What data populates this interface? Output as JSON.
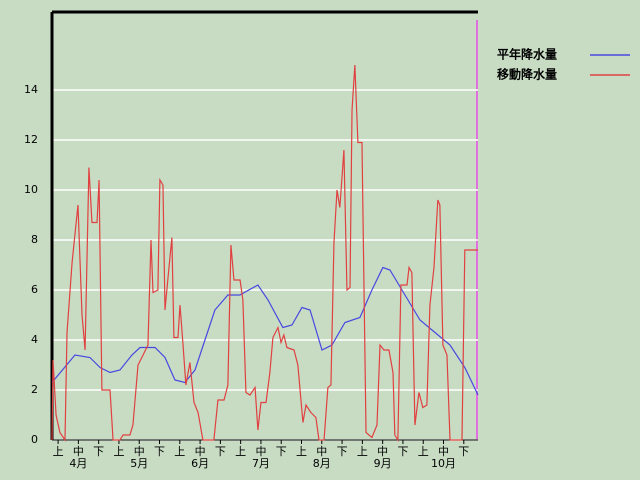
{
  "chart_data": {
    "type": "line",
    "ylim": [
      0,
      17.12
    ],
    "yticks": [
      0,
      2,
      4,
      6,
      8,
      10,
      12,
      14
    ],
    "grid": true,
    "xlim": [
      0,
      21
    ],
    "xticks": [
      {
        "value": 0.3,
        "label": "上"
      },
      {
        "value": 1.3,
        "label": "中"
      },
      {
        "value": 2.3,
        "label": "下"
      },
      {
        "value": 3.3,
        "label": "上"
      },
      {
        "value": 4.3,
        "label": "中"
      },
      {
        "value": 5.3,
        "label": "下"
      },
      {
        "value": 6.3,
        "label": "上"
      },
      {
        "value": 7.3,
        "label": "中"
      },
      {
        "value": 8.3,
        "label": "下"
      },
      {
        "value": 9.3,
        "label": "上"
      },
      {
        "value": 10.3,
        "label": "中"
      },
      {
        "value": 11.3,
        "label": "下"
      },
      {
        "value": 12.3,
        "label": "上"
      },
      {
        "value": 13.3,
        "label": "中"
      },
      {
        "value": 14.3,
        "label": "下"
      },
      {
        "value": 15.3,
        "label": "上"
      },
      {
        "value": 16.3,
        "label": "中"
      },
      {
        "value": 17.3,
        "label": "下"
      },
      {
        "value": 18.3,
        "label": "上"
      },
      {
        "value": 19.3,
        "label": "中"
      },
      {
        "value": 20.3,
        "label": "下"
      }
    ],
    "months": [
      {
        "value": 1.3,
        "label": "4月"
      },
      {
        "value": 4.3,
        "label": "5月"
      },
      {
        "value": 7.3,
        "label": "6月"
      },
      {
        "value": 10.3,
        "label": "7月"
      },
      {
        "value": 13.3,
        "label": "8月"
      },
      {
        "value": 16.3,
        "label": "9月"
      },
      {
        "value": 19.3,
        "label": "10月"
      }
    ],
    "series": [
      {
        "name": "平年降水量",
        "color": "#4848e0",
        "x": [
          0,
          1.13,
          1.87,
          2.37,
          2.86,
          3.35,
          3.94,
          4.34,
          5.08,
          5.57,
          6.06,
          6.55,
          7.05,
          7.54,
          8.03,
          8.67,
          9.26,
          10.15,
          10.65,
          11.38,
          11.83,
          12.32,
          12.72,
          13.31,
          13.8,
          14.44,
          15.18,
          15.77,
          16.31,
          16.66,
          17.4,
          18.14,
          18.88,
          19.62,
          20.35,
          21
        ],
        "values": [
          2.3,
          3.4,
          3.3,
          2.9,
          2.7,
          2.8,
          3.4,
          3.7,
          3.7,
          3.3,
          2.4,
          2.3,
          2.8,
          4.0,
          5.2,
          5.8,
          5.8,
          6.2,
          5.6,
          4.5,
          4.6,
          5.3,
          5.2,
          3.6,
          3.8,
          4.7,
          4.9,
          6.0,
          6.9,
          6.8,
          5.8,
          4.8,
          4.3,
          3.8,
          2.9,
          1.8
        ]
      },
      {
        "name": "移動降水量",
        "color": "#e04040",
        "x": [
          0,
          0.05,
          0.2,
          0.39,
          0.64,
          0.74,
          0.99,
          1.28,
          1.48,
          1.63,
          1.82,
          1.97,
          2.22,
          2.32,
          2.46,
          2.86,
          3.01,
          3.35,
          3.5,
          3.84,
          3.99,
          4.24,
          4.49,
          4.73,
          4.88,
          4.98,
          5.22,
          5.32,
          5.47,
          5.57,
          5.72,
          5.91,
          6.01,
          6.21,
          6.31,
          6.46,
          6.6,
          6.8,
          7,
          7.2,
          7.44,
          7.98,
          8.18,
          8.48,
          8.67,
          8.82,
          8.97,
          9.27,
          9.41,
          9.56,
          9.76,
          10.01,
          10.15,
          10.3,
          10.55,
          10.74,
          10.89,
          11.14,
          11.29,
          11.43,
          11.58,
          11.93,
          12.12,
          12.37,
          12.52,
          12.76,
          13.01,
          13.16,
          13.41,
          13.6,
          13.75,
          13.9,
          14.05,
          14.19,
          14.39,
          14.54,
          14.69,
          14.79,
          14.93,
          15.08,
          15.28,
          15.48,
          15.77,
          16.02,
          16.17,
          16.36,
          16.61,
          16.81,
          16.9,
          17.05,
          17.2,
          17.5,
          17.6,
          17.74,
          17.89,
          18.09,
          18.28,
          18.48,
          18.63,
          18.83,
          19.02,
          19.12,
          19.27,
          19.47,
          19.62,
          20.21,
          20.35,
          21
        ],
        "values": [
          0,
          3.2,
          1,
          0.3,
          0,
          4.3,
          7.1,
          9.4,
          5,
          3.6,
          10.9,
          8.7,
          8.7,
          10.4,
          2,
          2,
          0,
          0,
          0.2,
          0.2,
          0.6,
          3,
          3.4,
          3.8,
          8,
          5.9,
          6,
          10.4,
          10.2,
          5.2,
          6.5,
          8.1,
          4.1,
          4.1,
          5.4,
          3.8,
          2.2,
          3.1,
          1.5,
          1.1,
          0,
          0,
          1.6,
          1.6,
          2.2,
          7.8,
          6.4,
          6.4,
          5.6,
          1.9,
          1.8,
          2.1,
          0.4,
          1.5,
          1.5,
          2.7,
          4.1,
          4.5,
          3.9,
          4.2,
          3.7,
          3.6,
          3,
          0.7,
          1.4,
          1.1,
          0.9,
          0,
          0,
          2.1,
          2.2,
          7.9,
          10,
          9.3,
          11.6,
          6,
          6.1,
          13.2,
          15,
          11.9,
          11.9,
          0.3,
          0.1,
          0.6,
          3.8,
          3.6,
          3.6,
          2.7,
          0.2,
          0,
          6.2,
          6.2,
          6.9,
          6.7,
          0.6,
          1.9,
          1.3,
          1.4,
          5.4,
          6.9,
          9.6,
          9.4,
          3.8,
          3.4,
          0,
          0,
          7.6,
          7.6
        ]
      }
    ]
  }
}
